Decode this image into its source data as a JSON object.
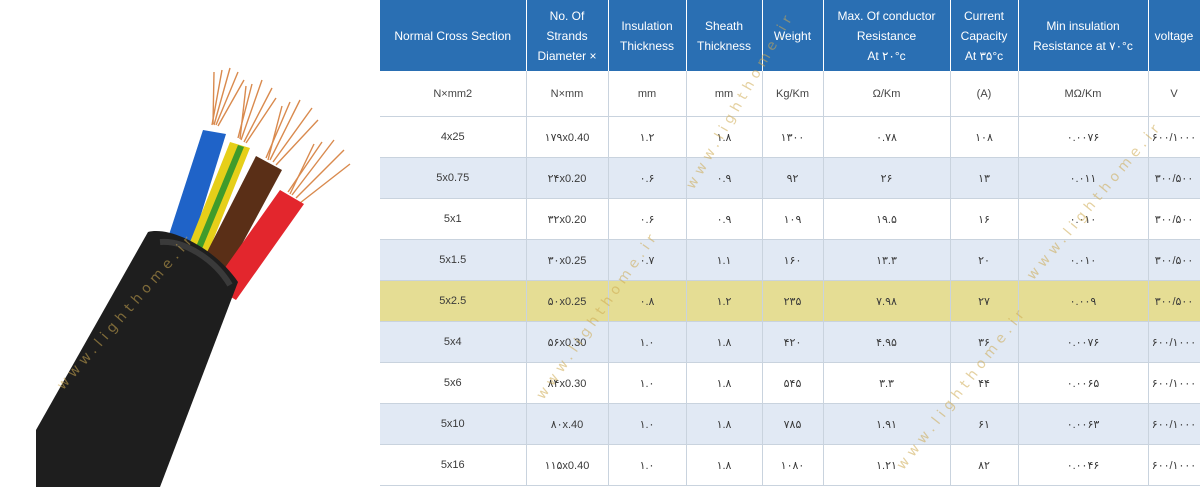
{
  "watermark": "www.lighthome.ir",
  "photo": {
    "alt": "cable-photo",
    "colors": {
      "jacket": "#1e1e1e",
      "blue": "#1f63c8",
      "yellow": "#e6cf19",
      "green": "#3f9b2b",
      "brown": "#5a2f17",
      "red": "#e3262d",
      "copper": "#d98a4e"
    }
  },
  "table": {
    "headers": [
      [
        "Normal Cross Section"
      ],
      [
        "No. Of",
        "Strands",
        "Diameter ×"
      ],
      [
        "Insulation",
        "Thickness"
      ],
      [
        "Sheath",
        "Thickness"
      ],
      [
        "Weight"
      ],
      [
        "Max. Of conductor",
        "Resistance",
        "At ۲۰°c"
      ],
      [
        "Current",
        "Capacity",
        "At ۳۵°c"
      ],
      [
        "Min insulation",
        "Resistance at ۷۰°c"
      ],
      [
        "voltage"
      ]
    ],
    "units": [
      "N×mm2",
      "N×mm",
      "mm",
      "mm",
      "Kg/Km",
      "Ω/Km",
      "(A)",
      "MΩ/Km",
      "V"
    ],
    "rows": [
      [
        "4x25",
        "۱۷۹x0.40",
        "۱.۲",
        "۱.۸",
        "۱۳۰۰",
        "۰.۷۸",
        "۱۰۸",
        "۰.۰۰۷۶",
        "۶۰۰/۱۰۰۰"
      ],
      [
        "5x0.75",
        "۲۴x0.20",
        "۰.۶",
        "۰.۹",
        "۹۲",
        "۲۶",
        "۱۳",
        "۰.۰۱۱",
        "۳۰۰/۵۰۰"
      ],
      [
        "5x1",
        "۳۲x0.20",
        "۰.۶",
        "۰.۹",
        "۱۰۹",
        "۱۹.۵",
        "۱۶",
        "۰.۰۱۰",
        "۳۰۰/۵۰۰"
      ],
      [
        "5x1.5",
        "۳۰x0.25",
        "۰.۷",
        "۱.۱",
        "۱۶۰",
        "۱۳.۳",
        "۲۰",
        "۰.۰۱۰",
        "۳۰۰/۵۰۰"
      ],
      [
        "5x2.5",
        "۵۰x0.25",
        "۰.۸",
        "۱.۲",
        "۲۳۵",
        "۷.۹۸",
        "۲۷",
        "۰.۰۰۹",
        "۳۰۰/۵۰۰"
      ],
      [
        "5x4",
        "۵۶x0.30",
        "۱.۰",
        "۱.۸",
        "۴۲۰",
        "۴.۹۵",
        "۳۶",
        "۰.۰۰۷۶",
        "۶۰۰/۱۰۰۰"
      ],
      [
        "5x6",
        "۸۴x0.30",
        "۱.۰",
        "۱.۸",
        "۵۴۵",
        "۳.۳",
        "۴۴",
        "۰.۰۰۶۵",
        "۶۰۰/۱۰۰۰"
      ],
      [
        "5x10",
        "۸۰x.40",
        "۱.۰",
        "۱.۸",
        "۷۸۵",
        "۱.۹۱",
        "۶۱",
        "۰.۰۰۶۳",
        "۶۰۰/۱۰۰۰"
      ],
      [
        "5x16",
        "۱۱۵x0.40",
        "۱.۰",
        "۱.۸",
        "۱۰۸۰",
        "۱.۲۱",
        "۸۲",
        "۰.۰۰۴۶",
        "۶۰۰/۱۰۰۰"
      ]
    ],
    "highlight_row": 4,
    "colors": {
      "header_bg": "#2a6fb3",
      "row_alt": "#e1e9f4",
      "highlight": "#e5dd94"
    }
  }
}
